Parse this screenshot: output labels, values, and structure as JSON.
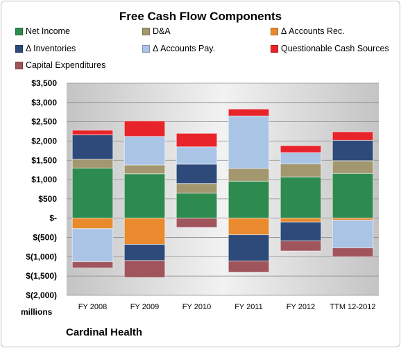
{
  "chart_data": {
    "type": "bar",
    "stacked": true,
    "title": "Free Cash Flow Components",
    "xlabel": "",
    "ylabel": "millions",
    "company": "Cardinal Health",
    "categories": [
      "FY 2008",
      "FY 2009",
      "FY 2010",
      "FY 2011",
      "FY 2012",
      "TTM 12-2012"
    ],
    "ylim": [
      -2000,
      3500
    ],
    "yticks": [
      3500,
      3000,
      2500,
      2000,
      1500,
      1000,
      500,
      0,
      -500,
      -1000,
      -1500,
      -2000
    ],
    "ytick_labels": [
      "$3,500",
      "$3,000",
      "$2,500",
      "$2,000",
      "$1,500",
      "$1,000",
      "$500",
      "$-",
      "$(500)",
      "$(1,000)",
      "$(1,500)",
      "$(2,000)"
    ],
    "grid": true,
    "legend_position": "top",
    "series": [
      {
        "name": "Net Income",
        "color": "#2e8b4f",
        "values": [
          1300,
          1150,
          650,
          960,
          1070,
          1160
        ]
      },
      {
        "name": "D&A",
        "color": "#a39770",
        "values": [
          230,
          230,
          250,
          330,
          340,
          330
        ]
      },
      {
        "name": "Δ Accounts Rec.",
        "color": "#e88a2d",
        "values": [
          -270,
          -680,
          0,
          -430,
          -100,
          -50
        ]
      },
      {
        "name": "Δ Inventories",
        "color": "#2e4a7a",
        "values": [
          630,
          -420,
          500,
          -680,
          -490,
          530
        ]
      },
      {
        "name": "Δ Accounts Pay.",
        "color": "#aac4e6",
        "values": [
          -860,
          740,
          450,
          1360,
          290,
          -720
        ]
      },
      {
        "name": "Questionable Cash Sources",
        "color": "#e8242a",
        "values": [
          120,
          400,
          350,
          180,
          180,
          220
        ]
      },
      {
        "name": "Capital Expenditures",
        "color": "#a0545c",
        "values": [
          -160,
          -440,
          -240,
          -290,
          -260,
          -230
        ]
      }
    ]
  }
}
